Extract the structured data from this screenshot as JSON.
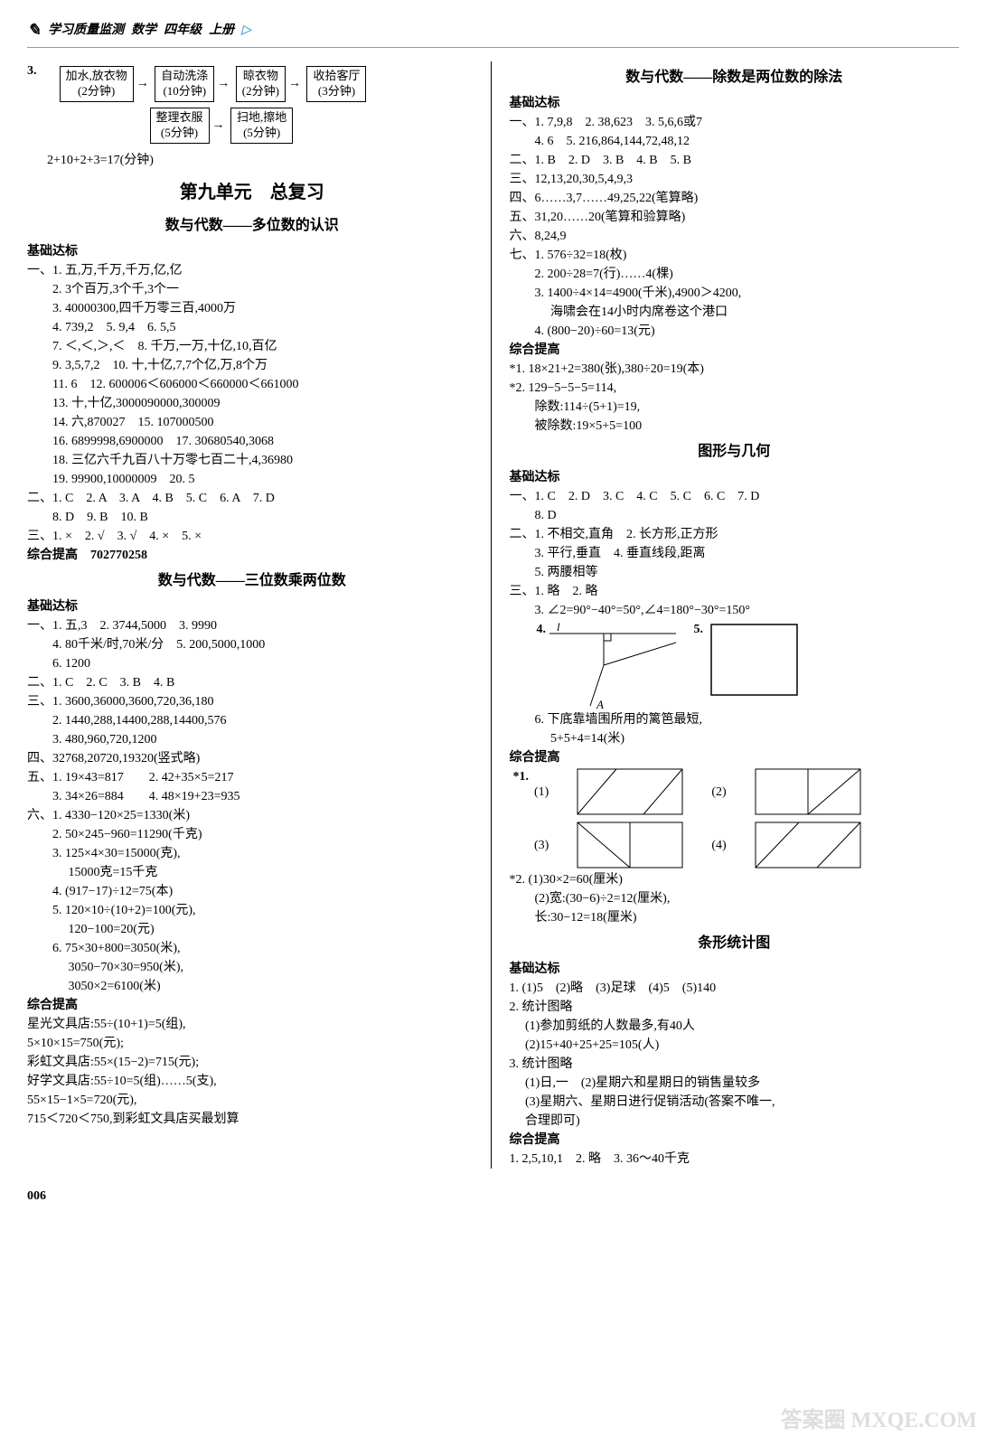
{
  "header": {
    "t1": "学习质量监测",
    "t2": "数学",
    "t3": "四年级",
    "t4": "上册"
  },
  "q3": {
    "label": "3.",
    "boxes": [
      "加水,放衣物\n(2分钟)",
      "自动洗涤\n(10分钟)",
      "晾衣物\n(2分钟)",
      "收拾客厅\n(3分钟)",
      "整理衣服\n(5分钟)",
      "扫地,擦地\n(5分钟)"
    ],
    "calc": "2+10+2+3=17(分钟)"
  },
  "unit9": "第九单元　总复习",
  "L": {
    "s1_title": "数与代数——多位数的认识",
    "s1": [
      "基础达标",
      "一、1. 五,万,千万,千万,亿,亿",
      "　　2. 3个百万,3个千,3个一",
      "　　3. 40000300,四千万零三百,4000万",
      "　　4. 739,2　5. 9,4　6. 5,5",
      "　　7. ＜,＜,＞,＜　8. 千万,一万,十亿,10,百亿",
      "　　9. 3,5,7,2　10. 十,十亿,7,7个亿,万,8个万",
      "　　11. 6　12. 600006＜606000＜660000＜661000",
      "　　13. 十,十亿,3000090000,300009",
      "　　14. 六,870027　15. 107000500",
      "　　16. 6899998,6900000　17. 30680540,3068",
      "　　18. 三亿六千九百八十万零七百二十,4,36980",
      "　　19. 99900,10000009　20. 5",
      "二、1. C　2. A　3. A　4. B　5. C　6. A　7. D",
      "　　8. D　9. B　10. B",
      "三、1. ×　2. √　3. √　4. ×　5. ×",
      "综合提高　702770258"
    ],
    "s2_title": "数与代数——三位数乘两位数",
    "s2": [
      "基础达标",
      "一、1. 五,3　2. 3744,5000　3. 9990",
      "　　4. 80千米/时,70米/分　5. 200,5000,1000",
      "　　6. 1200",
      "二、1. C　2. C　3. B　4. B",
      "三、1. 3600,36000,3600,720,36,180",
      "　　2. 1440,288,14400,288,14400,576",
      "　　3. 480,960,720,1200",
      "四、32768,20720,19320(竖式略)",
      "五、1. 19×43=817　　2. 42+35×5=217",
      "　　3. 34×26=884　　4. 48×19+23=935",
      "六、1. 4330−120×25=1330(米)",
      "　　2. 50×245−960=11290(千克)",
      "　　3. 125×4×30=15000(克),",
      "　　　 15000克=15千克",
      "　　4. (917−17)÷12=75(本)",
      "　　5. 120×10÷(10+2)=100(元),",
      "　　　 120−100=20(元)",
      "　　6. 75×30+800=3050(米),",
      "　　　 3050−70×30=950(米),",
      "　　　 3050×2=6100(米)",
      "综合提高",
      "星光文具店:55÷(10+1)=5(组),",
      "5×10×15=750(元);",
      "彩虹文具店:55×(15−2)=715(元);",
      "好学文具店:55÷10=5(组)……5(支),",
      "55×15−1×5=720(元),",
      "715＜720＜750,到彩虹文具店买最划算"
    ]
  },
  "R": {
    "s1_title": "数与代数——除数是两位数的除法",
    "s1": [
      "基础达标",
      "一、1. 7,9,8　2. 38,623　3. 5,6,6或7",
      "　　4. 6　5. 216,864,144,72,48,12",
      "二、1. B　2. D　3. B　4. B　5. B",
      "三、12,13,20,30,5,4,9,3",
      "四、6……3,7……49,25,22(笔算略)",
      "五、31,20……20(笔算和验算略)",
      "六、8,24,9",
      "七、1. 576÷32=18(枚)",
      "　　2. 200÷28=7(行)……4(棵)",
      "　　3. 1400÷4×14=4900(千米),4900＞4200,",
      "　　　 海啸会在14小时内席卷这个港口",
      "　　4. (800−20)÷60=13(元)",
      "综合提高",
      "*1. 18×21+2=380(张),380÷20=19(本)",
      "*2. 129−5−5−5=114,",
      "　　除数:114÷(5+1)=19,",
      "　　被除数:19×5+5=100"
    ],
    "s2_title": "图形与几何",
    "s2a": [
      "基础达标",
      "一、1. C　2. D　3. C　4. C　5. C　6. C　7. D",
      "　　8. D",
      "二、1. 不相交,直角　2. 长方形,正方形",
      "　　3. 平行,垂直　4. 垂直线段,距离",
      "　　5. 两腰相等",
      "三、1. 略　2. 略",
      "　　3. ∠2=90°−40°=50°,∠4=180°−30°=150°"
    ],
    "fig_labels": {
      "f4": "4.",
      "f5": "5.",
      "l": "l",
      "A": "A"
    },
    "s2b": [
      "　　6. 下底靠墙围所用的篱笆最短,",
      "　　　 5+5+4=14(米)",
      "综合提高"
    ],
    "star1": "*1.",
    "plabels": [
      "(1)",
      "(2)",
      "(3)",
      "(4)"
    ],
    "s2c": [
      "*2. (1)30×2=60(厘米)",
      "　　(2)宽:(30−6)÷2=12(厘米),",
      "　　长:30−12=18(厘米)"
    ],
    "s3_title": "条形统计图",
    "s3": [
      "基础达标",
      "1. (1)5　(2)略　(3)足球　(4)5　(5)140",
      "2. 统计图略",
      "　 (1)参加剪纸的人数最多,有40人",
      "　 (2)15+40+25+25=105(人)",
      "3. 统计图略",
      "　 (1)日,一　(2)星期六和星期日的销售量较多",
      "　 (3)星期六、星期日进行促销活动(答案不唯一,",
      "　 合理即可)",
      "综合提高",
      "1. 2,5,10,1　2. 略　3. 36～40千克"
    ]
  },
  "page": "006",
  "wm": "答案圈  MXQE.COM"
}
